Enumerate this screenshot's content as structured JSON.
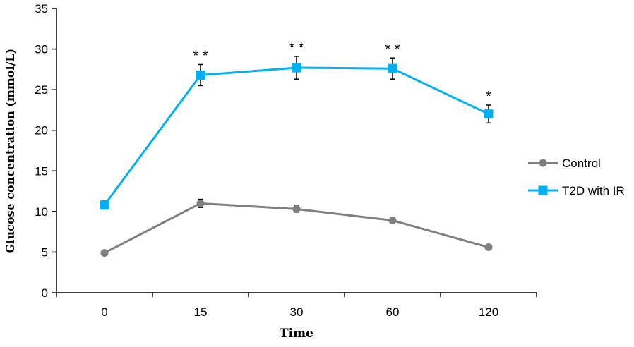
{
  "chart_data": {
    "type": "line",
    "title": "",
    "xlabel": "Time",
    "ylabel": "Glucose concentration (mmol/L)",
    "categories": [
      "0",
      "15",
      "30",
      "60",
      "120"
    ],
    "ylim": [
      0,
      35
    ],
    "yticks": [
      0,
      5,
      10,
      15,
      20,
      25,
      30,
      35
    ],
    "grid": false,
    "legend_position": "right",
    "series": [
      {
        "name": "Control",
        "color": "#808080",
        "marker": "circle",
        "values": [
          4.9,
          11.0,
          10.3,
          8.9,
          5.6
        ],
        "errors": [
          0.3,
          0.5,
          0.4,
          0.4,
          0.3
        ],
        "annotations": [
          "",
          "",
          "",
          "",
          ""
        ]
      },
      {
        "name": "T2D with IR",
        "color": "#00B0F0",
        "marker": "square",
        "values": [
          10.8,
          26.8,
          27.7,
          27.6,
          22.0
        ],
        "errors": [
          0.5,
          1.3,
          1.4,
          1.3,
          1.1
        ],
        "annotations": [
          "",
          "**",
          "**",
          "**",
          "*"
        ]
      }
    ]
  }
}
